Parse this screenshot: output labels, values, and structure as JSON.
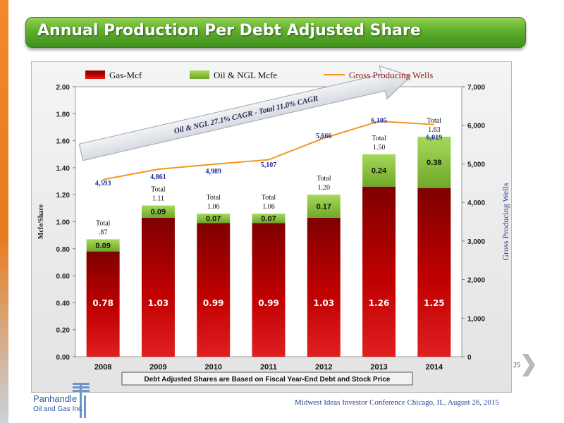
{
  "slide": {
    "title": "Annual Production Per Debt Adjusted Share",
    "page_number": "25",
    "footer": "Midwest Ideas Investor Conference Chicago, IL, August 26, 2015",
    "logo_line1": "Panhandle",
    "logo_line2": "Oil and Gas Inc."
  },
  "chart_data": {
    "type": "bar",
    "stacked": true,
    "categories": [
      "2008",
      "2009",
      "2010",
      "2011",
      "2012",
      "2013",
      "2014"
    ],
    "series": [
      {
        "name": "Gas-Mcf",
        "type": "bar",
        "axis": "left",
        "color": "#c00000",
        "values": [
          0.78,
          1.03,
          0.99,
          0.99,
          1.03,
          1.26,
          1.25
        ],
        "labels": [
          "0.78",
          "1.03",
          "0.99",
          "0.99",
          "1.03",
          "1.26",
          "1.25"
        ]
      },
      {
        "name": "Oil & NGL Mcfe",
        "type": "bar",
        "axis": "left",
        "color": "#8cc63f",
        "values": [
          0.09,
          0.09,
          0.07,
          0.07,
          0.17,
          0.24,
          0.38
        ],
        "labels": [
          "0.09",
          "0.09",
          "0.07",
          "0.07",
          "0.17",
          "0.24",
          "0.38"
        ]
      },
      {
        "name": "Gross Producing Wells",
        "type": "line",
        "axis": "right",
        "color": "#f7941d",
        "values": [
          4593,
          4861,
          4989,
          5107,
          5666,
          6105,
          6019
        ],
        "labels": [
          "4,593",
          "4,861",
          "4,989",
          "5,107",
          "5,666",
          "6,105",
          "6,019"
        ]
      }
    ],
    "totals": [
      {
        "prefix": "Total",
        "value": ".87"
      },
      {
        "prefix": "Total",
        "value": "1.11"
      },
      {
        "prefix": "Total",
        "value": "1.06"
      },
      {
        "prefix": "Total",
        "value": "1.06"
      },
      {
        "prefix": "Total",
        "value": "1.20"
      },
      {
        "prefix": "Total",
        "value": "1.50"
      },
      {
        "prefix": "Total",
        "value": "1.63"
      }
    ],
    "ylabel": "Mcfe/Share",
    "y2label": "Gross Producing Wells",
    "ylim": [
      0,
      2.0
    ],
    "y_ticks": [
      "0.00",
      "0.20",
      "0.40",
      "0.60",
      "0.80",
      "1.00",
      "1.20",
      "1.40",
      "1.60",
      "1.80",
      "2.00"
    ],
    "y2lim": [
      0,
      7000
    ],
    "y2_ticks": [
      "0",
      "1,000",
      "2,000",
      "3,000",
      "4,000",
      "5,000",
      "6,000",
      "7,000"
    ],
    "annotation": "Oil & NGL 27.1% CAGR - Total  11.0% CAGR",
    "note": "Debt Adjusted Shares are Based on Fiscal Year-End Debt and Stock Price",
    "legend_position": "top",
    "grid": false
  }
}
